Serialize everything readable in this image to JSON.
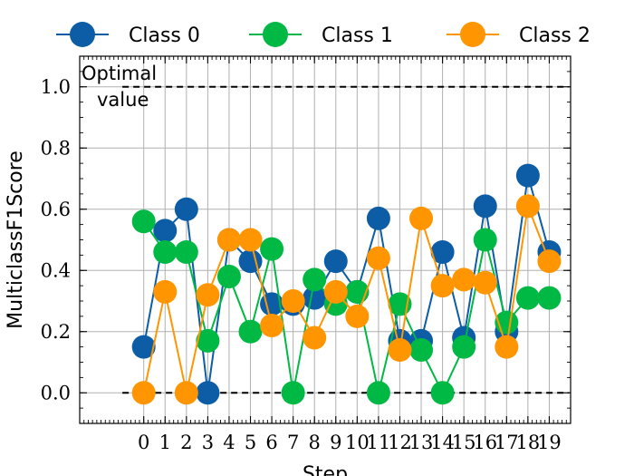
{
  "chart_data": {
    "type": "line",
    "xlabel": "Step",
    "ylabel": "MulticlassF1Score",
    "x": [
      0,
      1,
      2,
      3,
      4,
      5,
      6,
      7,
      8,
      9,
      10,
      11,
      12,
      13,
      14,
      15,
      16,
      17,
      18,
      19
    ],
    "xlim": [
      -3,
      20
    ],
    "ylim": [
      -0.1,
      1.1
    ],
    "yticks": [
      "0.0",
      "0.2",
      "0.4",
      "0.6",
      "0.8",
      "1.0"
    ],
    "grid": true,
    "legend_position": "top, outside",
    "series": [
      {
        "name": "Class 0",
        "color": "#0c5da5",
        "values": [
          0.15,
          0.53,
          0.6,
          0.0,
          0.5,
          0.43,
          0.29,
          0.29,
          0.31,
          0.43,
          0.33,
          0.57,
          0.17,
          0.17,
          0.46,
          0.18,
          0.61,
          0.2,
          0.71,
          0.46
        ]
      },
      {
        "name": "Class 1",
        "color": "#00b945",
        "values": [
          0.56,
          0.46,
          0.46,
          0.17,
          0.38,
          0.2,
          0.47,
          0.0,
          0.37,
          0.29,
          0.33,
          0.0,
          0.29,
          0.14,
          0.0,
          0.15,
          0.5,
          0.23,
          0.31,
          0.31
        ]
      },
      {
        "name": "Class 2",
        "color": "#ff9500",
        "values": [
          0.0,
          0.33,
          0.0,
          0.32,
          0.5,
          0.5,
          0.22,
          0.3,
          0.18,
          0.33,
          0.25,
          0.44,
          0.14,
          0.57,
          0.35,
          0.37,
          0.36,
          0.15,
          0.61,
          0.43
        ]
      }
    ],
    "reference_lines": [
      {
        "y": 1.0,
        "style": "dashed",
        "color": "#000000"
      },
      {
        "y": 0.0,
        "style": "dashed",
        "color": "#000000"
      }
    ],
    "annotation": {
      "text_line1": "Optimal",
      "text_line2": "value"
    }
  }
}
